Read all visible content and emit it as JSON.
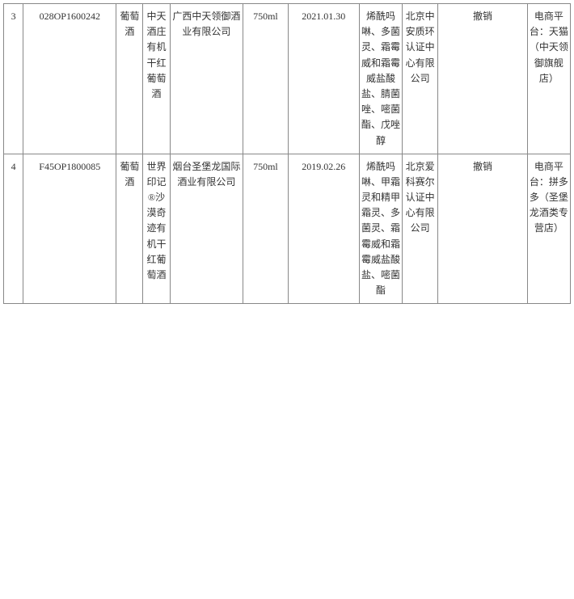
{
  "table": {
    "rows": [
      {
        "idx": "3",
        "code": "028OP1600242",
        "category": "葡萄酒",
        "product_name": "中天酒庄有机干红葡萄酒",
        "company": "广西中天领御酒业有限公司",
        "spec": "750ml",
        "date": "2021.01.30",
        "substances": "烯酰吗啉、多菌灵、霜霉威和霜霉威盐酸盐、腈菌唑、嘧菌酯、戊唑醇",
        "cert_body": "北京中安质环认证中心有限公司",
        "action": "撤销",
        "channel": "电商平台：天猫（中天领御旗舰店）"
      },
      {
        "idx": "4",
        "code": "F45OP1800085",
        "category": "葡萄酒",
        "product_name": "世界印记®沙漠奇迹有机干红葡萄酒",
        "company": "烟台圣堡龙国际酒业有限公司",
        "spec": "750ml",
        "date": "2019.02.26",
        "substances": "烯酰吗啉、甲霜灵和精甲霜灵、多菌灵、霜霉威和霜霉威盐酸盐、嘧菌酯",
        "cert_body": "北京爱科赛尔认证中心有限公司",
        "action": "撤销",
        "channel": "电商平台：拼多多（圣堡龙酒类专营店）"
      }
    ]
  }
}
